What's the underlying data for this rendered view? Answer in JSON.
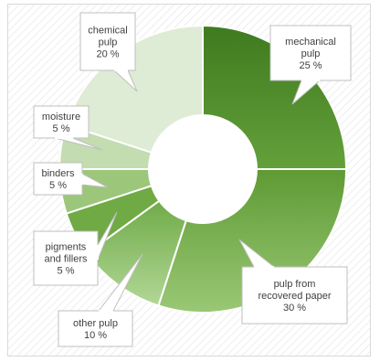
{
  "chart_data": {
    "type": "pie",
    "variant": "doughnut",
    "slices": [
      {
        "label": "mechanical pulp",
        "value": 25,
        "value_label": "25 %",
        "color": "#4f8a2c"
      },
      {
        "label": "pulp from recovered paper",
        "value": 30,
        "value_label": "30 %",
        "color": "#7fb654"
      },
      {
        "label": "other pulp",
        "value": 10,
        "value_label": "10 %",
        "color": "#a7cf86"
      },
      {
        "label": "pigments and fillers",
        "value": 5,
        "value_label": "5 %",
        "color": "#6faa45"
      },
      {
        "label": "binders",
        "value": 5,
        "value_label": "5 %",
        "color": "#9cc77b"
      },
      {
        "label": "moisture",
        "value": 5,
        "value_label": "5 %",
        "color": "#c3dcb0"
      },
      {
        "label": "chemical pulp",
        "value": 20,
        "value_label": "20 %",
        "color": "#deebd5"
      }
    ],
    "labels_display": [
      [
        "mechanical",
        "pulp",
        "25 %"
      ],
      [
        "pulp from",
        "recovered paper",
        "30 %"
      ],
      [
        "other pulp",
        "10 %"
      ],
      [
        "pigments",
        "and fillers",
        "5 %"
      ],
      [
        "binders",
        "5 %"
      ],
      [
        "moisture",
        "5 %"
      ],
      [
        "chemical",
        "pulp",
        "20 %"
      ]
    ],
    "legend": "none",
    "background_pattern": "diagonal-hatch"
  }
}
